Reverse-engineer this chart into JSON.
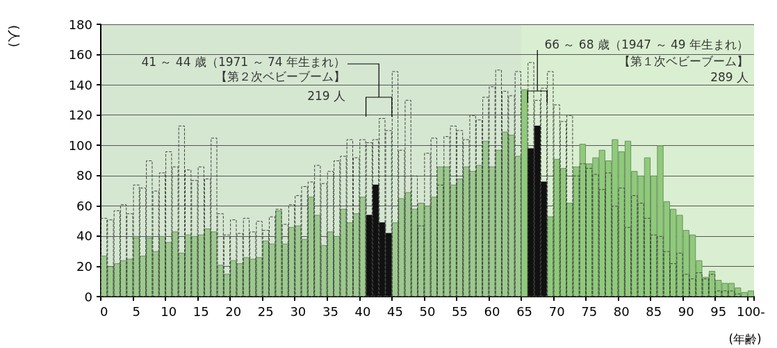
{
  "chart_data": {
    "type": "bar",
    "ylabel": "(人)",
    "xlabel": "(年齢)",
    "categories": [
      "0",
      null,
      null,
      null,
      null,
      "5",
      null,
      null,
      null,
      null,
      "10",
      null,
      null,
      null,
      null,
      "15",
      null,
      null,
      null,
      null,
      "20",
      null,
      null,
      null,
      null,
      "25",
      null,
      null,
      null,
      null,
      "30",
      null,
      null,
      null,
      null,
      "35",
      null,
      null,
      null,
      null,
      "40",
      null,
      null,
      null,
      null,
      "45",
      null,
      null,
      null,
      null,
      "50",
      null,
      null,
      null,
      null,
      "55",
      null,
      null,
      null,
      null,
      "60",
      null,
      null,
      null,
      null,
      "65",
      null,
      null,
      null,
      null,
      "70",
      null,
      null,
      null,
      null,
      "75",
      null,
      null,
      null,
      null,
      "80",
      null,
      null,
      null,
      null,
      "85",
      null,
      null,
      null,
      null,
      "90",
      null,
      null,
      null,
      null,
      "95",
      null,
      null,
      null,
      null,
      "100-"
    ],
    "series": [
      {
        "colors": [
          "#9cc98e",
          "#9cc98e",
          "#9cc98e",
          "#9cc98e",
          "#9cc98e",
          "#9cc98e",
          "#9cc98e",
          "#9cc98e",
          "#9cc98e",
          "#9cc98e",
          "#9cc98e",
          "#9cc98e",
          "#9cc98e",
          "#9cc98e",
          "#9cc98e",
          "#9cc98e",
          "#9cc98e",
          "#9cc98e",
          "#9cc98e",
          "#9cc98e",
          "#9cc98e",
          "#9cc98e",
          "#9cc98e",
          "#9cc98e",
          "#9cc98e",
          "#9cc98e",
          "#9cc98e",
          "#9cc98e",
          "#9cc98e",
          "#9cc98e",
          "#9cc98e",
          "#9cc98e",
          "#9cc98e",
          "#9cc98e",
          "#9cc98e",
          "#9cc98e",
          "#9cc98e",
          "#9cc98e",
          "#9cc98e",
          "#9cc98e",
          "#9cc98e",
          "#111111",
          "#111111",
          "#111111",
          "#111111",
          "#9cc98e",
          "#9cc98e",
          "#9cc98e",
          "#9cc98e",
          "#9cc98e",
          "#9cc98e",
          "#9cc98e",
          "#9cc98e",
          "#9cc98e",
          "#9cc98e",
          "#9cc98e",
          "#9cc98e",
          "#9cc98e",
          "#9cc98e",
          "#9cc98e",
          "#9cc98e",
          "#9cc98e",
          "#9cc98e",
          "#9cc98e",
          "#9cc98e",
          "#8fca7b",
          "#111111",
          "#111111",
          "#111111",
          "#8fca7b",
          "#8fca7b",
          "#8fca7b",
          "#8fca7b",
          "#8fca7b",
          "#8fca7b",
          "#8fca7b",
          "#8fca7b",
          "#8fca7b",
          "#8fca7b",
          "#8fca7b",
          "#8fca7b",
          "#8fca7b",
          "#8fca7b",
          "#8fca7b",
          "#8fca7b",
          "#8fca7b",
          "#8fca7b",
          "#8fca7b",
          "#8fca7b",
          "#8fca7b",
          "#8fca7b",
          "#8fca7b",
          "#8fca7b",
          "#8fca7b",
          "#8fca7b",
          "#8fca7b",
          "#8fca7b",
          "#8fca7b",
          "#8fca7b",
          "#8fca7b",
          "#8fca7b"
        ],
        "values": [
          27,
          20,
          22,
          24,
          25,
          39,
          27,
          39,
          30,
          40,
          36,
          43,
          29,
          41,
          40,
          41,
          45,
          43,
          21,
          15,
          24,
          22,
          26,
          25,
          26,
          37,
          35,
          57,
          35,
          46,
          47,
          38,
          66,
          54,
          34,
          43,
          40,
          58,
          49,
          55,
          66,
          54,
          74,
          49,
          42,
          49,
          65,
          69,
          58,
          62,
          60,
          66,
          86,
          86,
          74,
          78,
          86,
          83,
          87,
          103,
          86,
          97,
          109,
          107,
          93,
          137,
          98,
          113,
          76,
          53,
          91,
          85,
          62,
          86,
          101,
          88,
          92,
          97,
          90,
          104,
          96,
          103,
          83,
          80,
          92,
          80,
          100,
          63,
          58,
          54,
          44,
          41,
          24,
          13,
          17,
          11,
          9,
          9,
          6,
          3,
          4
        ]
      },
      {
        "color": "#444444",
        "line_style": "dashed",
        "values": [
          52,
          51,
          57,
          61,
          55,
          74,
          72,
          90,
          70,
          82,
          96,
          86,
          113,
          84,
          77,
          86,
          78,
          105,
          55,
          41,
          51,
          42,
          52,
          43,
          50,
          44,
          53,
          58,
          48,
          61,
          67,
          73,
          76,
          87,
          75,
          83,
          90,
          93,
          104,
          92,
          104,
          102,
          104,
          118,
          110,
          149,
          97,
          130,
          80,
          47,
          95,
          105,
          74,
          106,
          113,
          110,
          104,
          120,
          117,
          132,
          139,
          150,
          136,
          133,
          149,
          null,
          155,
          130,
          138,
          149,
          127,
          116,
          120,
          80,
          88,
          85,
          81,
          71,
          82,
          60,
          72,
          46,
          67,
          62,
          52,
          41,
          40,
          30,
          22,
          29,
          15,
          12,
          16,
          12,
          15,
          4,
          4,
          4,
          2,
          null,
          null
        ]
      }
    ],
    "ylim": [
      0,
      180
    ],
    "yticks": [
      0,
      20,
      40,
      60,
      80,
      100,
      120,
      140,
      160,
      180
    ],
    "grid": "y",
    "bands": [
      {
        "axis": "x",
        "from": "0",
        "to": "100-",
        "color": "#d5e7d1"
      },
      {
        "axis": "x",
        "from": "65",
        "to": "100-",
        "color": "#daefd1"
      }
    ],
    "annotations": [
      "41 ～ 44 歳（1971 ～ 74 年生まれ）",
      "【第２次ベビーブーム】",
      "219 人",
      "66 ～ 68 歳（1947 ～ 49 年生まれ）",
      "【第１次ベビーブーム】",
      "289 人"
    ]
  }
}
